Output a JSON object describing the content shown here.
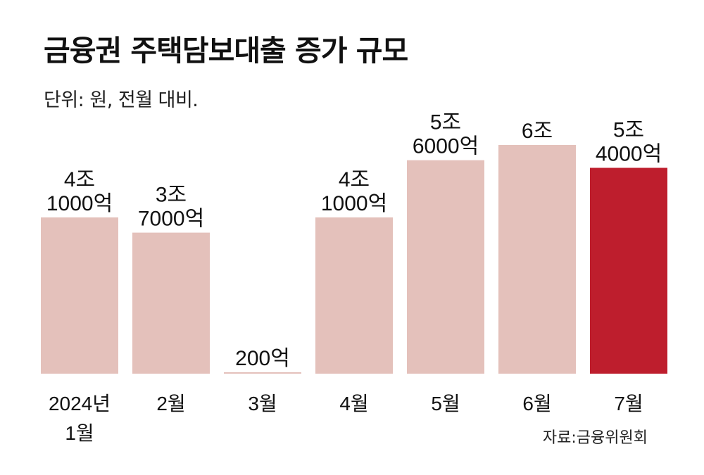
{
  "title": "금융권 주택담보대출 증가 규모",
  "subtitle": "단위: 원, 전월 대비.",
  "source": "자료:금융위원회",
  "chart_data": {
    "type": "bar",
    "title": "금융권 주택담보대출 증가 규모",
    "subtitle": "단위: 원, 전월 대비.",
    "xlabel": "",
    "ylabel": "",
    "grid": false,
    "legend": "none",
    "categories": [
      [
        "2024년",
        "1월"
      ],
      [
        "2월"
      ],
      [
        "3월"
      ],
      [
        "4월"
      ],
      [
        "5월"
      ],
      [
        "6월"
      ],
      [
        "7월"
      ]
    ],
    "values": [
      41000,
      37000,
      200,
      41000,
      56000,
      60000,
      54000
    ],
    "value_unit": "억 원",
    "data_labels": [
      [
        "4조",
        "1000억"
      ],
      [
        "3조",
        "7000억"
      ],
      [
        "200억"
      ],
      [
        "4조",
        "1000억"
      ],
      [
        "5조",
        "6000억"
      ],
      [
        "6조"
      ],
      [
        "5조",
        "4000억"
      ]
    ],
    "ylim": [
      0,
      60000
    ],
    "colors": {
      "default": "#e4c1bb",
      "highlight": "#be1e2d"
    },
    "highlight_index": 6
  }
}
